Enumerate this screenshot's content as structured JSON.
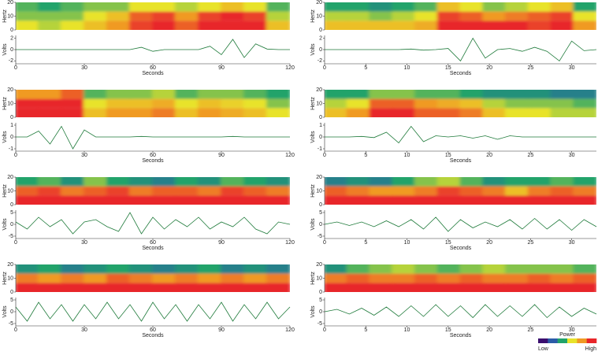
{
  "chart_data": [
    {
      "type": "heatmap",
      "ylabel": "Hertz",
      "ylim": [
        0,
        20
      ],
      "yticks": [
        0,
        10,
        20
      ],
      "xlim": [
        0,
        120
      ],
      "z": [
        [
          0.6,
          0.55,
          0.6,
          0.7,
          0.8,
          0.95,
          1,
          0.9,
          1,
          1,
          1,
          0.7
        ],
        [
          0.5,
          0.5,
          0.5,
          0.6,
          0.7,
          0.9,
          0.95,
          0.8,
          0.95,
          1,
          0.95,
          0.55
        ],
        [
          0.45,
          0.4,
          0.45,
          0.5,
          0.5,
          0.6,
          0.6,
          0.55,
          0.6,
          0.7,
          0.6,
          0.45
        ]
      ]
    },
    {
      "type": "line",
      "ylabel": "Volts",
      "xlabel": "Seconds",
      "ylim": [
        -2.5,
        2.5
      ],
      "yticks": [
        -2,
        0,
        2
      ],
      "xlim": [
        0,
        120
      ],
      "xticks": [
        0,
        30,
        60,
        90,
        120
      ],
      "color": "#1e7a3a",
      "x": [
        0,
        5,
        10,
        15,
        20,
        25,
        30,
        35,
        40,
        45,
        50,
        55,
        60,
        65,
        70,
        75,
        80,
        85,
        90,
        95,
        100,
        105,
        110,
        115,
        120
      ],
      "values": [
        0,
        0,
        0,
        0,
        0,
        0,
        0,
        0,
        0,
        0,
        0,
        0.4,
        -0.3,
        0,
        0,
        0,
        0,
        0.6,
        -0.9,
        1.8,
        -1.4,
        1,
        0.1,
        0,
        0
      ]
    },
    {
      "type": "heatmap",
      "ylabel": "Hertz",
      "ylim": [
        0,
        20
      ],
      "yticks": [
        0,
        10,
        20
      ],
      "xlim": [
        0,
        33
      ],
      "z": [
        [
          0.7,
          0.7,
          0.7,
          0.7,
          0.75,
          1,
          1,
          1,
          1,
          0.95,
          1,
          0.8
        ],
        [
          0.55,
          0.55,
          0.5,
          0.55,
          0.6,
          0.95,
          0.9,
          0.8,
          0.85,
          0.9,
          0.95,
          0.6
        ],
        [
          0.4,
          0.4,
          0.35,
          0.4,
          0.45,
          0.7,
          0.6,
          0.5,
          0.55,
          0.6,
          0.7,
          0.4
        ]
      ]
    },
    {
      "type": "line",
      "ylabel": "Volts",
      "xlabel": "Seconds",
      "ylim": [
        -2.5,
        2.5
      ],
      "yticks": [
        -2,
        0,
        2
      ],
      "xlim": [
        0,
        33
      ],
      "xticks": [
        0,
        5,
        10,
        15,
        20,
        25,
        30
      ],
      "color": "#1e7a3a",
      "x": [
        0,
        1.5,
        3,
        4.5,
        6,
        7.5,
        9,
        10.5,
        12,
        13.5,
        15,
        16.5,
        18,
        19.5,
        21,
        22.5,
        24,
        25.5,
        27,
        28.5,
        30,
        31.5,
        33
      ],
      "values": [
        0,
        0,
        0,
        0,
        0,
        0,
        0,
        0.1,
        -0.1,
        0,
        0.2,
        -2,
        2,
        -1.5,
        0,
        0.2,
        -0.3,
        0.4,
        -0.3,
        -2,
        1.5,
        -0.2,
        0
      ]
    },
    {
      "type": "heatmap",
      "ylabel": "Hertz",
      "ylim": [
        0,
        20
      ],
      "yticks": [
        0,
        10,
        20
      ],
      "xlim": [
        0,
        120
      ],
      "z": [
        [
          1,
          1,
          1,
          0.7,
          0.8,
          0.8,
          0.85,
          0.7,
          0.8,
          0.75,
          0.7,
          0.6
        ],
        [
          1,
          1,
          1,
          0.6,
          0.7,
          0.7,
          0.75,
          0.6,
          0.7,
          0.65,
          0.6,
          0.5
        ],
        [
          0.8,
          0.8,
          0.9,
          0.45,
          0.5,
          0.5,
          0.55,
          0.45,
          0.5,
          0.5,
          0.45,
          0.4
        ]
      ]
    },
    {
      "type": "line",
      "ylabel": "Volts",
      "xlabel": "Seconds",
      "ylim": [
        -1.2,
        1.2
      ],
      "yticks": [
        -1,
        0,
        1
      ],
      "xlim": [
        0,
        120
      ],
      "xticks": [
        0,
        30,
        60,
        90,
        120
      ],
      "color": "#1e7a3a",
      "x": [
        0,
        5,
        10,
        15,
        20,
        25,
        30,
        35,
        40,
        45,
        50,
        55,
        60,
        65,
        70,
        75,
        80,
        85,
        90,
        95,
        100,
        105,
        110,
        115,
        120
      ],
      "values": [
        0,
        0,
        0.5,
        -0.6,
        0.9,
        -1,
        0.6,
        0,
        0,
        0,
        0,
        0.05,
        0,
        0,
        0,
        0,
        0,
        0,
        0,
        0.05,
        0,
        0,
        0,
        0,
        0
      ]
    },
    {
      "type": "heatmap",
      "ylabel": "Hertz",
      "ylim": [
        0,
        20
      ],
      "yticks": [
        0,
        10,
        20
      ],
      "xlim": [
        0,
        33
      ],
      "z": [
        [
          0.7,
          0.8,
          1,
          1,
          0.9,
          0.9,
          0.85,
          0.7,
          0.6,
          0.6,
          0.55,
          0.55
        ],
        [
          0.55,
          0.6,
          0.9,
          0.9,
          0.8,
          0.75,
          0.7,
          0.55,
          0.5,
          0.5,
          0.5,
          0.45
        ],
        [
          0.4,
          0.4,
          0.5,
          0.5,
          0.45,
          0.45,
          0.4,
          0.35,
          0.35,
          0.35,
          0.3,
          0.3
        ]
      ]
    },
    {
      "type": "line",
      "ylabel": "Volts",
      "xlabel": "Seconds",
      "ylim": [
        -1.2,
        1.2
      ],
      "yticks": [
        -1,
        0,
        1
      ],
      "xlim": [
        0,
        33
      ],
      "xticks": [
        0,
        5,
        10,
        15,
        20,
        25,
        30
      ],
      "color": "#1e7a3a",
      "x": [
        0,
        1.5,
        3,
        4.5,
        6,
        7.5,
        9,
        10.5,
        12,
        13.5,
        15,
        16.5,
        18,
        19.5,
        21,
        22.5,
        24,
        25.5,
        27,
        28.5,
        30,
        31.5,
        33
      ],
      "values": [
        0,
        0,
        0,
        0.05,
        -0.05,
        0.4,
        -0.5,
        0.9,
        -0.4,
        0.1,
        0,
        0.1,
        -0.1,
        0.1,
        -0.2,
        0.1,
        0,
        0,
        0,
        0,
        0,
        0,
        0
      ]
    },
    {
      "type": "heatmap",
      "ylabel": "Hertz",
      "ylim": [
        0,
        20
      ],
      "yticks": [
        0,
        10,
        20
      ],
      "xlim": [
        0,
        120
      ],
      "z": [
        [
          1,
          1,
          1,
          1,
          1,
          1,
          1,
          1,
          1,
          1,
          1,
          1
        ],
        [
          0.9,
          0.95,
          0.85,
          0.9,
          0.95,
          0.85,
          0.9,
          0.9,
          0.85,
          0.95,
          0.9,
          0.85
        ],
        [
          0.4,
          0.45,
          0.35,
          0.5,
          0.4,
          0.35,
          0.3,
          0.4,
          0.35,
          0.45,
          0.4,
          0.35
        ]
      ]
    },
    {
      "type": "line",
      "ylabel": "Volts",
      "xlabel": "Seconds",
      "ylim": [
        -6,
        6
      ],
      "yticks": [
        -5,
        0,
        5
      ],
      "xlim": [
        0,
        120
      ],
      "xticks": [
        0,
        30,
        60,
        90,
        120
      ],
      "color": "#1e7a3a",
      "x": [
        0,
        5,
        10,
        15,
        20,
        25,
        30,
        35,
        40,
        45,
        50,
        55,
        60,
        65,
        70,
        75,
        80,
        85,
        90,
        95,
        100,
        105,
        110,
        115,
        120
      ],
      "values": [
        1,
        -2,
        3,
        -1,
        2,
        -4,
        1,
        2,
        -1,
        -3,
        5,
        -4,
        3,
        -2,
        2,
        -1,
        3,
        -2,
        1,
        -1,
        3,
        -2,
        -4,
        1,
        0
      ]
    },
    {
      "type": "heatmap",
      "ylabel": "Hertz",
      "ylim": [
        0,
        20
      ],
      "yticks": [
        0,
        10,
        20
      ],
      "xlim": [
        0,
        33
      ],
      "z": [
        [
          1,
          1,
          1,
          1,
          1,
          1,
          1,
          1,
          1,
          1,
          1,
          1
        ],
        [
          0.9,
          0.85,
          0.8,
          0.8,
          0.85,
          0.95,
          0.9,
          0.85,
          0.7,
          0.85,
          0.9,
          0.85
        ],
        [
          0.3,
          0.35,
          0.3,
          0.4,
          0.5,
          0.55,
          0.45,
          0.35,
          0.4,
          0.4,
          0.45,
          0.4
        ]
      ]
    },
    {
      "type": "line",
      "ylabel": "Volts",
      "xlabel": "Seconds",
      "ylim": [
        -6,
        6
      ],
      "yticks": [
        -5,
        0,
        5
      ],
      "xlim": [
        0,
        33
      ],
      "xticks": [
        0,
        5,
        10,
        15,
        20,
        25,
        30
      ],
      "color": "#1e7a3a",
      "x": [
        0,
        1.5,
        3,
        4.5,
        6,
        7.5,
        9,
        10.5,
        12,
        13.5,
        15,
        16.5,
        18,
        19.5,
        21,
        22.5,
        24,
        25.5,
        27,
        28.5,
        30,
        31.5,
        33
      ],
      "values": [
        0,
        1,
        -0.5,
        1,
        -1,
        1.5,
        -1,
        2,
        -2,
        3,
        -3,
        2,
        -1.5,
        1,
        -1,
        2,
        -2,
        2.5,
        -2,
        2,
        -2.5,
        2,
        -1
      ]
    },
    {
      "type": "heatmap",
      "ylabel": "Hertz",
      "ylim": [
        0,
        20
      ],
      "yticks": [
        0,
        10,
        20
      ],
      "xlim": [
        0,
        120
      ],
      "z": [
        [
          1,
          1,
          1,
          1,
          1,
          1,
          1,
          1,
          1,
          1,
          1,
          1
        ],
        [
          0.85,
          0.8,
          0.85,
          0.8,
          0.9,
          0.85,
          0.8,
          0.85,
          0.8,
          0.85,
          0.8,
          0.85
        ],
        [
          0.35,
          0.4,
          0.3,
          0.35,
          0.4,
          0.35,
          0.3,
          0.35,
          0.4,
          0.3,
          0.35,
          0.3
        ]
      ]
    },
    {
      "type": "line",
      "ylabel": "Volts",
      "xlabel": "Seconds",
      "ylim": [
        -6,
        6
      ],
      "yticks": [
        -5,
        0,
        5
      ],
      "xlim": [
        0,
        120
      ],
      "xticks": [
        0,
        30,
        60,
        90,
        120
      ],
      "color": "#1e7a3a",
      "x": [
        0,
        5,
        10,
        15,
        20,
        25,
        30,
        35,
        40,
        45,
        50,
        55,
        60,
        65,
        70,
        75,
        80,
        85,
        90,
        95,
        100,
        105,
        110,
        115,
        120
      ],
      "values": [
        2,
        -4,
        4,
        -3,
        3,
        -4,
        3,
        -3,
        4,
        -3,
        3,
        -4,
        4,
        -3,
        3,
        -4,
        3,
        -3,
        4,
        -4,
        3,
        -3,
        4,
        -3,
        2
      ]
    },
    {
      "type": "heatmap",
      "ylabel": "Hertz",
      "ylim": [
        0,
        20
      ],
      "yticks": [
        0,
        10,
        20
      ],
      "xlim": [
        0,
        33
      ],
      "z": [
        [
          1,
          1,
          1,
          1,
          1,
          1,
          1,
          1,
          1,
          1,
          1,
          1
        ],
        [
          0.85,
          0.9,
          0.85,
          0.85,
          0.9,
          0.85,
          0.9,
          0.85,
          0.85,
          0.9,
          0.85,
          0.9
        ],
        [
          0.35,
          0.45,
          0.5,
          0.55,
          0.5,
          0.45,
          0.5,
          0.55,
          0.5,
          0.5,
          0.5,
          0.45
        ]
      ]
    },
    {
      "type": "line",
      "ylabel": "Volts",
      "xlabel": "Seconds",
      "ylim": [
        -6,
        6
      ],
      "yticks": [
        -5,
        0,
        5
      ],
      "xlim": [
        0,
        33
      ],
      "xticks": [
        0,
        5,
        10,
        15,
        20,
        25,
        30
      ],
      "color": "#1e7a3a",
      "x": [
        0,
        1.5,
        3,
        4.5,
        6,
        7.5,
        9,
        10.5,
        12,
        13.5,
        15,
        16.5,
        18,
        19.5,
        21,
        22.5,
        24,
        25.5,
        27,
        28.5,
        30,
        31.5,
        33
      ],
      "values": [
        0,
        1,
        -1,
        1.5,
        -1.5,
        2,
        -2,
        2.5,
        -2,
        3,
        -2,
        2.5,
        -2.5,
        3,
        -2,
        2.5,
        -2,
        3,
        -2.5,
        2,
        -2,
        1.5,
        -1
      ]
    }
  ],
  "colorbar": {
    "title": "Power",
    "low": "Low",
    "high": "High",
    "colors": [
      "#3b0f6f",
      "#2c5ca8",
      "#21a36b",
      "#e8e32a",
      "#f09a24",
      "#e8262a"
    ]
  }
}
